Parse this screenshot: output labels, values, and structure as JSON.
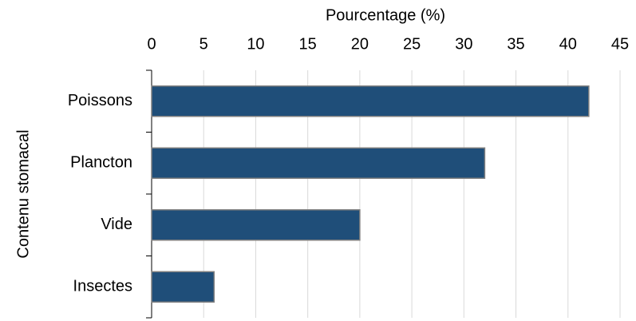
{
  "chart_data": {
    "type": "barh",
    "xlabel": "Pourcentage (%)",
    "ylabel": "Contenu stomacal",
    "categories": [
      "Poissons",
      "Plancton",
      "Vide",
      "Insectes"
    ],
    "values": [
      42,
      32,
      20,
      6
    ],
    "color": "#1f4e79",
    "xlim": [
      0,
      45
    ],
    "xticks": [
      0,
      5,
      10,
      15,
      20,
      25,
      30,
      35,
      40,
      45
    ],
    "grid": true
  }
}
